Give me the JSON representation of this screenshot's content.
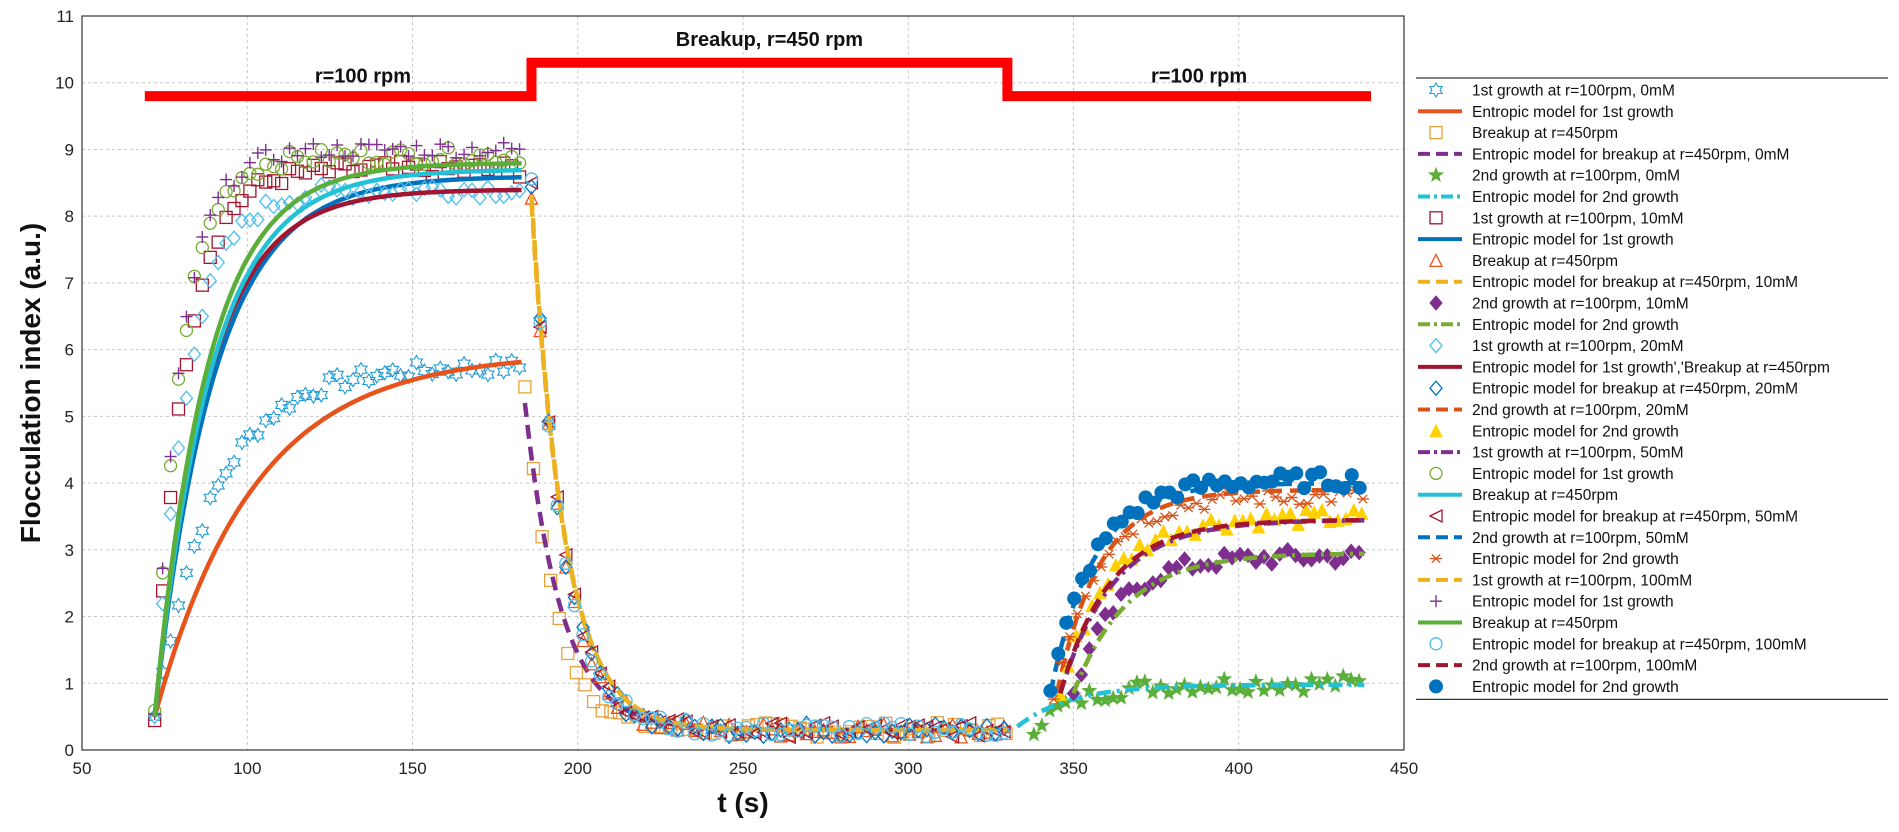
{
  "chart_data": {
    "type": "line",
    "xlabel": "t (s)",
    "ylabel": "Flocculation index (a.u.)",
    "xlim": [
      50,
      450
    ],
    "ylim": [
      0,
      11
    ],
    "xticks": [
      50,
      100,
      150,
      200,
      250,
      300,
      350,
      400,
      450
    ],
    "yticks": [
      0,
      1,
      2,
      3,
      4,
      5,
      6,
      7,
      8,
      9,
      10,
      11
    ],
    "grid": true,
    "legend_position": "right",
    "speed_profile": {
      "color": "#ff0000",
      "points": [
        [
          69,
          9.8
        ],
        [
          186,
          9.8
        ],
        [
          186,
          10.3
        ],
        [
          330,
          10.3
        ],
        [
          330,
          9.8
        ],
        [
          440,
          9.8
        ]
      ]
    },
    "annotations": [
      {
        "text": "r=100 rpm",
        "x": 135,
        "y": 10.0
      },
      {
        "text": "Breakup, r=450 rpm",
        "x": 258,
        "y": 10.55
      },
      {
        "text": "r=100 rpm",
        "x": 388,
        "y": 10.0
      }
    ],
    "series": [
      {
        "name": "1st growth at r=100rpm, 0mM",
        "color": "#1f9bd7",
        "marker": "hexagram",
        "segment": "g1",
        "A": 5.75,
        "tau": 18,
        "t0": 72,
        "tEnd": 183
      },
      {
        "name": "Entropic model for 1st growth",
        "color": "#e8531c",
        "line": "solid",
        "segment": "g1",
        "A": 5.95,
        "tau": 30,
        "t0": 72,
        "tEnd": 183
      },
      {
        "name": "Breakup at r=450rpm",
        "color": "#e6a23c",
        "marker": "square",
        "segment": "b",
        "start": 5.5,
        "tau": 9,
        "t0": 184,
        "tEnd": 330
      },
      {
        "name": "Entropic model for breakup at r=450rpm, 0mM",
        "color": "#7e2f8e",
        "line": "dash",
        "segment": "b",
        "start": 5.2,
        "tau": 11,
        "t0": 184,
        "tEnd": 330
      },
      {
        "name": "2nd growth at r=100rpm, 0mM",
        "color": "#5aae3a",
        "marker": "pentagram",
        "segment": "g2",
        "A": 1.0,
        "tau": 14,
        "t0": 338,
        "tEnd": 438
      },
      {
        "name": "Entropic model for 2nd growth",
        "color": "#22c1d6",
        "line": "dashdot",
        "segment": "g2",
        "A": 0.98,
        "tau": 16,
        "t0": 333,
        "tEnd": 438
      },
      {
        "name": "1st growth at r=100rpm, 10mM",
        "color": "#a2142f",
        "marker": "square",
        "segment": "g1",
        "A": 8.7,
        "tau": 9,
        "t0": 72,
        "tEnd": 183
      },
      {
        "name": "Entropic model for 1st growth",
        "color": "#0072bd",
        "line": "solid",
        "segment": "g1",
        "A": 8.6,
        "tau": 18,
        "t0": 72,
        "tEnd": 183
      },
      {
        "name": "Breakup at r=450rpm",
        "color": "#e8531c",
        "marker": "triangle",
        "segment": "b",
        "start": 8.3,
        "tau": 9,
        "t0": 186,
        "tEnd": 330
      },
      {
        "name": "Entropic model for breakup at r=450rpm, 10mM",
        "color": "#edb120",
        "line": "dash",
        "segment": "b",
        "start": 8.2,
        "tau": 10,
        "t0": 186,
        "tEnd": 330
      },
      {
        "name": "2nd growth at r=100rpm, 10mM",
        "color": "#7e2f8e",
        "marker": "diamond",
        "segment": "g2",
        "A": 2.9,
        "tau": 13,
        "t0": 350,
        "tEnd": 438
      },
      {
        "name": "Entropic model for 2nd growth",
        "color": "#77ac30",
        "line": "dashdot",
        "segment": "g2",
        "A": 2.95,
        "tau": 16,
        "t0": 350,
        "tEnd": 438
      },
      {
        "name": "1st growth at r=100rpm, 20mM",
        "color": "#4dbeee",
        "marker": "diamond-open",
        "segment": "g1",
        "A": 8.4,
        "tau": 10,
        "t0": 72,
        "tEnd": 183
      },
      {
        "name": "Entropic model for 1st growth','Breakup at r=450rpm",
        "color": "#a2142f",
        "line": "solid",
        "segment": "g1",
        "A": 8.4,
        "tau": 16,
        "t0": 72,
        "tEnd": 183
      },
      {
        "name": "Entropic model for breakup at r=450rpm, 20mM",
        "color": "#0072bd",
        "marker": "diamond-open",
        "segment": "b",
        "start": 8.4,
        "tau": 9,
        "t0": 186,
        "tEnd": 330
      },
      {
        "name": "2nd growth at r=100rpm, 20mM",
        "color": "#d95319",
        "line": "dash",
        "segment": "g2",
        "A": 3.9,
        "tau": 13,
        "t0": 345,
        "tEnd": 438
      },
      {
        "name": "Entropic model for 2nd growth",
        "color": "#ffd100",
        "marker": "triangle-filled",
        "segment": "g2",
        "A": 3.5,
        "tau": 14,
        "t0": 346,
        "tEnd": 438
      },
      {
        "name": "1st growth at r=100rpm, 50mM",
        "color": "#7e2f8e",
        "line": "dashdot",
        "segment": "g2",
        "A": 3.45,
        "tau": 16,
        "t0": 346,
        "tEnd": 438
      },
      {
        "name": "Entropic model for 1st growth",
        "color": "#77ac30",
        "marker": "circle-open",
        "segment": "g1",
        "A": 8.9,
        "tau": 8,
        "t0": 72,
        "tEnd": 183
      },
      {
        "name": "Breakup at r=450rpm",
        "color": "#22c1d6",
        "line": "solid",
        "segment": "g1",
        "A": 8.7,
        "tau": 17,
        "t0": 72,
        "tEnd": 183
      },
      {
        "name": "Entropic model for breakup at r=450rpm, 50mM",
        "color": "#a2142f",
        "marker": "triangle-left",
        "segment": "b",
        "start": 8.5,
        "tau": 9,
        "t0": 186,
        "tEnd": 330
      },
      {
        "name": "2nd growth at r=100rpm, 50mM",
        "color": "#0072bd",
        "line": "dash",
        "segment": "g2",
        "A": 4.0,
        "tau": 13,
        "t0": 343,
        "tEnd": 438
      },
      {
        "name": "Entropic model for 2nd growth",
        "color": "#d95319",
        "marker": "asterisk",
        "segment": "g2",
        "A": 3.8,
        "tau": 13,
        "t0": 344,
        "tEnd": 438
      },
      {
        "name": "1st growth at r=100rpm, 100mM",
        "color": "#edb120",
        "line": "dash",
        "segment": "b",
        "start": 8.3,
        "tau": 10,
        "t0": 186,
        "tEnd": 330
      },
      {
        "name": "Entropic model for 1st growth",
        "color": "#7e2f8e",
        "marker": "plus",
        "segment": "g1",
        "A": 9.0,
        "tau": 8,
        "t0": 72,
        "tEnd": 183
      },
      {
        "name": "Breakup at r=450rpm",
        "color": "#5aae3a",
        "line": "solid",
        "segment": "g1",
        "A": 8.8,
        "tau": 16,
        "t0": 72,
        "tEnd": 183
      },
      {
        "name": "Entropic model for breakup at r=450rpm, 100mM",
        "color": "#4dbeee",
        "marker": "circle-open",
        "segment": "b",
        "start": 8.5,
        "tau": 9,
        "t0": 186,
        "tEnd": 330
      },
      {
        "name": "2nd growth at r=100rpm, 100mM",
        "color": "#a2142f",
        "line": "dash",
        "segment": "g2",
        "A": 3.45,
        "tau": 15,
        "t0": 346,
        "tEnd": 438
      },
      {
        "name": "Entropic model for 2nd growth",
        "color": "#0072bd",
        "marker": "circle-filled",
        "segment": "g2",
        "A": 4.05,
        "tau": 13,
        "t0": 343,
        "tEnd": 438
      }
    ]
  }
}
